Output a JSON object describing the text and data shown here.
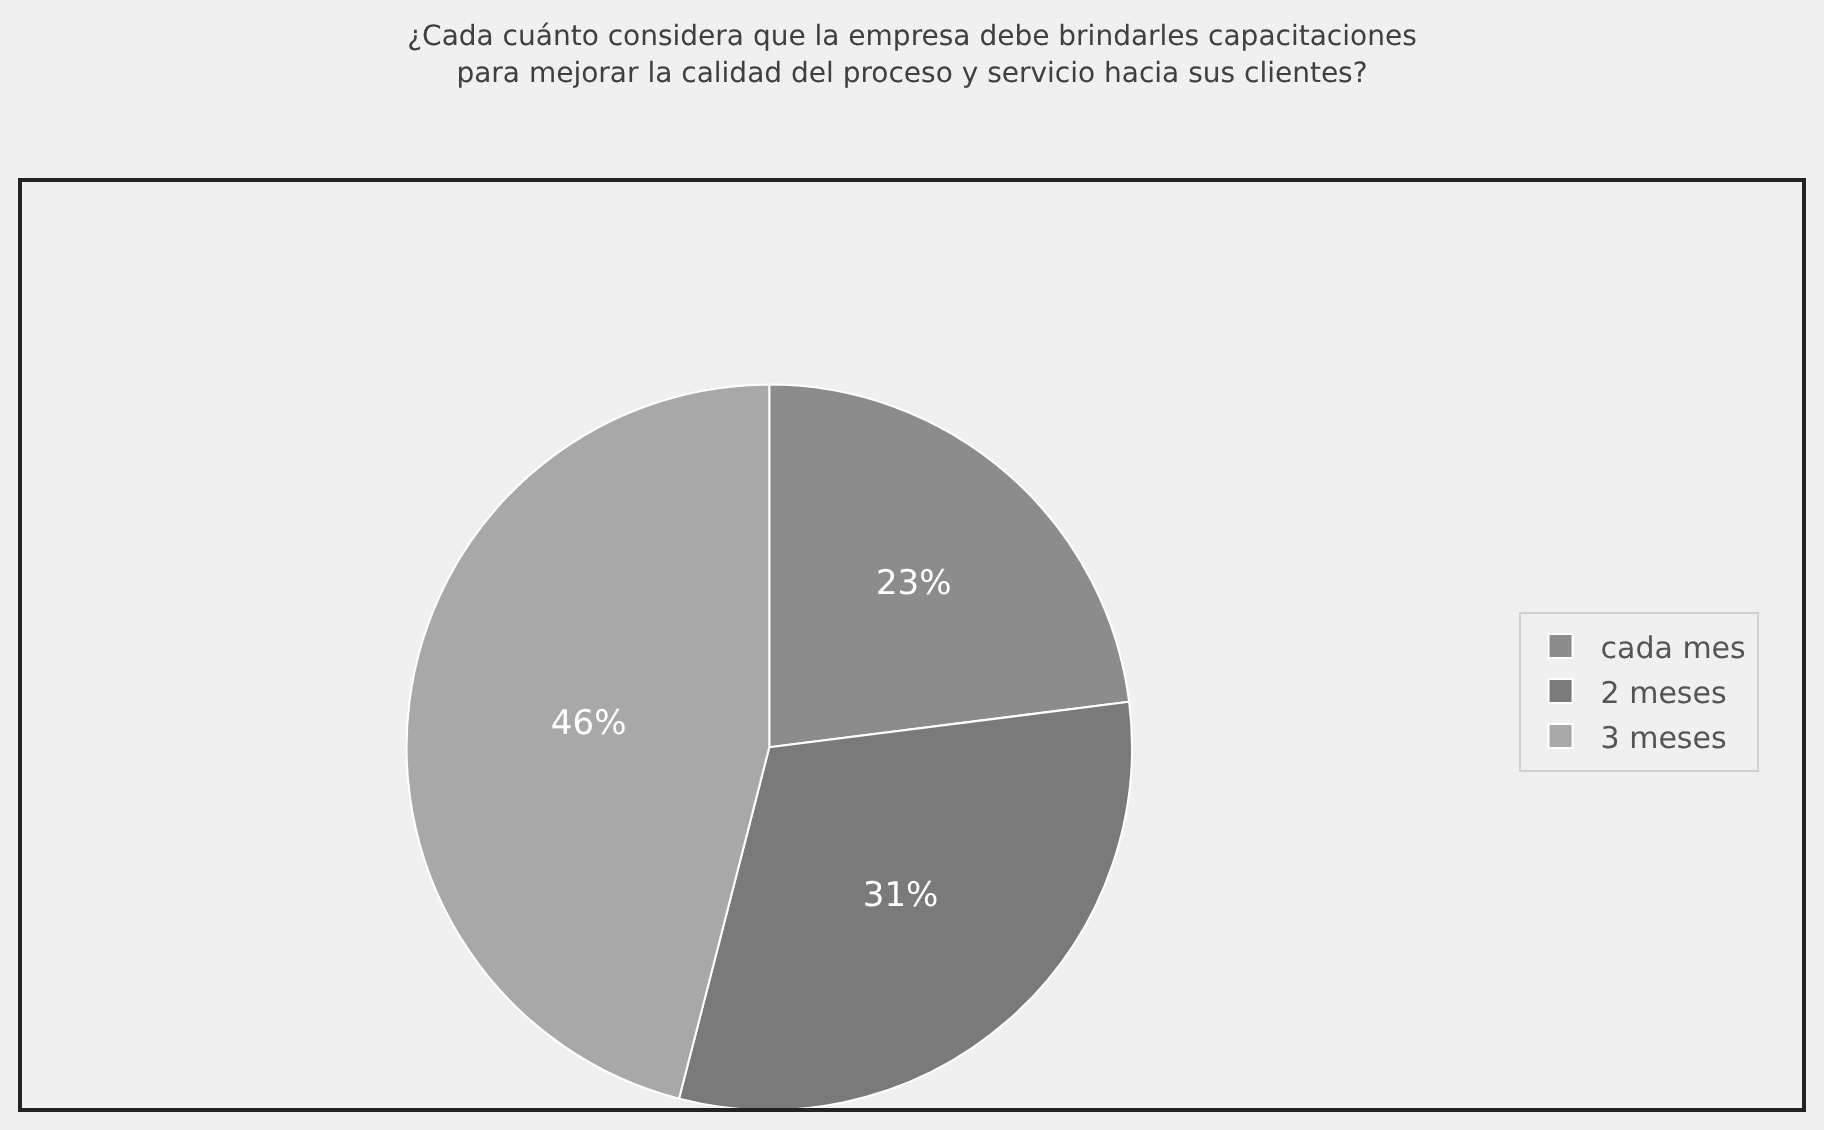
{
  "chart_data": {
    "type": "pie",
    "title": "¿Cada cuánto considera que la empresa debe brindarles capacitaciones\npara mejorar la calidad del proceso y servicio hacia sus clientes?",
    "categories": [
      "cada mes",
      "2 meses",
      "3 meses"
    ],
    "values": [
      23,
      31,
      46
    ],
    "colors": [
      "#8c8c8c",
      "#7a7a7a",
      "#a8a8a8"
    ],
    "value_labels": [
      "23%",
      "31%",
      "46%"
    ],
    "legend": "right"
  }
}
